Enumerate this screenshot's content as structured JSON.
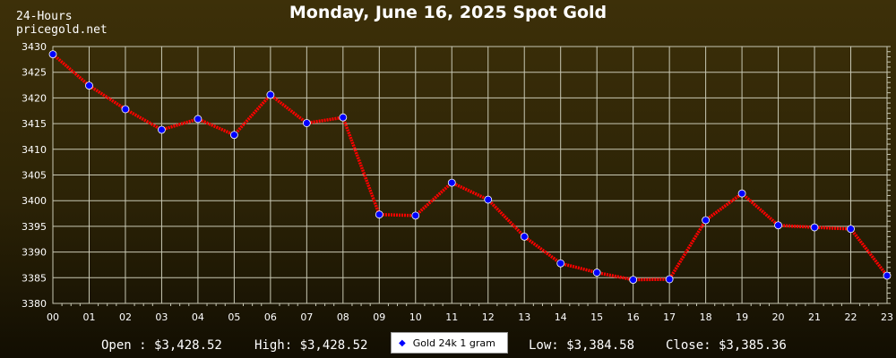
{
  "title": "Monday, June 16, 2025 Spot Gold",
  "period_label": "24-Hours",
  "site_label": "pricegold.net",
  "colors": {
    "line": "#ff0000",
    "marker": "#0000ff",
    "grid": "#c8c8b4",
    "text": "#ffffff"
  },
  "footer": {
    "open": "Open : $3,428.52",
    "high": "High: $3,428.52",
    "low": "Low: $3,384.58",
    "close": "Close: $3,385.36"
  },
  "chart_data": {
    "type": "line",
    "title": "Monday, June 16, 2025 Spot Gold",
    "xlabel": "",
    "ylabel": "",
    "categories": [
      "00",
      "01",
      "02",
      "03",
      "04",
      "05",
      "06",
      "07",
      "08",
      "09",
      "10",
      "11",
      "12",
      "13",
      "14",
      "15",
      "16",
      "17",
      "18",
      "19",
      "20",
      "21",
      "22",
      "23"
    ],
    "series": [
      {
        "name": "Gold 24k 1 gram",
        "values": [
          3428.5,
          3422.4,
          3417.8,
          3413.8,
          3415.9,
          3412.8,
          3420.6,
          3415.1,
          3416.2,
          3397.3,
          3397.1,
          3403.5,
          3400.2,
          3393.0,
          3387.8,
          3386.0,
          3384.6,
          3384.7,
          3396.2,
          3401.4,
          3395.2,
          3394.8,
          3394.5,
          3385.4
        ]
      }
    ],
    "ylim": [
      3380,
      3430
    ],
    "yticks": [
      3380,
      3385,
      3390,
      3395,
      3400,
      3405,
      3410,
      3415,
      3420,
      3425,
      3430
    ],
    "grid": true,
    "legend_position": "bottom-center"
  }
}
